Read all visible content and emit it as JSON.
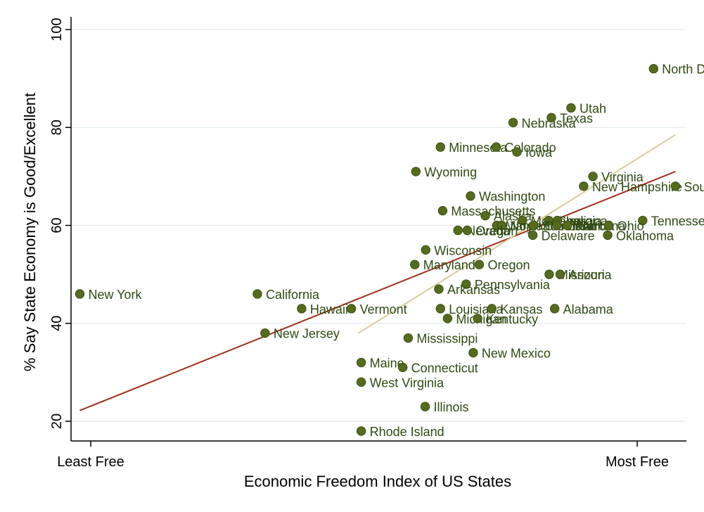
{
  "chart_data": {
    "type": "scatter",
    "title": "",
    "xlabel": "Economic Freedom Index of US States",
    "ylabel": "% Say State Economy is Good/Excellent",
    "ylim": [
      16,
      102
    ],
    "xlim": [
      -0.04,
      1.09
    ],
    "grid": true,
    "legend": "none",
    "x_ticks": [
      {
        "value": 0,
        "label": "Least Free"
      },
      {
        "value": 1,
        "label": "Most Free"
      }
    ],
    "y_ticks": [
      20,
      40,
      60,
      80,
      100
    ],
    "colors": {
      "marker_fill": "#556b1f",
      "marker_stroke": "#3d5012",
      "label": "#2f4a12",
      "fit_line": "#a0301a",
      "fit_line_2": "#d8cc9a",
      "grid": "#e8eef2",
      "axis": "#000000"
    },
    "fit_lines": [
      {
        "name": "linear-fit",
        "x": [
          -0.02,
          1.07
        ],
        "y": [
          22.2,
          71.0
        ],
        "color": "#a0301a"
      },
      {
        "name": "linear-fit-2",
        "x": [
          0.49,
          1.07
        ],
        "y": [
          38.0,
          78.5
        ],
        "color": "#d8cc9a"
      }
    ],
    "points": [
      {
        "label": "New York",
        "x": -0.02,
        "y": 46
      },
      {
        "label": "California",
        "x": 0.305,
        "y": 46
      },
      {
        "label": "Hawaii",
        "x": 0.386,
        "y": 43
      },
      {
        "label": "Vermont",
        "x": 0.477,
        "y": 43
      },
      {
        "label": "New Jersey",
        "x": 0.319,
        "y": 38
      },
      {
        "label": "Maine",
        "x": 0.495,
        "y": 32
      },
      {
        "label": "Connecticut",
        "x": 0.571,
        "y": 31
      },
      {
        "label": "West Virginia",
        "x": 0.495,
        "y": 28
      },
      {
        "label": "Illinois",
        "x": 0.612,
        "y": 23
      },
      {
        "label": "Rhode Island",
        "x": 0.495,
        "y": 18
      },
      {
        "label": "Mississippi",
        "x": 0.581,
        "y": 37
      },
      {
        "label": "New Mexico",
        "x": 0.7,
        "y": 34
      },
      {
        "label": "Wyoming",
        "x": 0.595,
        "y": 71
      },
      {
        "label": "Minnesota",
        "x": 0.64,
        "y": 76
      },
      {
        "label": "Colorado",
        "x": 0.742,
        "y": 76
      },
      {
        "label": "Iowa",
        "x": 0.78,
        "y": 75
      },
      {
        "label": "Nebraska",
        "x": 0.773,
        "y": 81
      },
      {
        "label": "Texas",
        "x": 0.843,
        "y": 82
      },
      {
        "label": "Utah",
        "x": 0.879,
        "y": 84
      },
      {
        "label": "North Dakota",
        "x": 1.03,
        "y": 92
      },
      {
        "label": "Virginia",
        "x": 0.919,
        "y": 70
      },
      {
        "label": "New Hampshire",
        "x": 0.902,
        "y": 68
      },
      {
        "label": "South Dakota",
        "x": 1.07,
        "y": 68
      },
      {
        "label": "Tennessee",
        "x": 1.01,
        "y": 61
      },
      {
        "label": "Oklahoma",
        "x": 0.946,
        "y": 58
      },
      {
        "label": "Washington",
        "x": 0.695,
        "y": 66
      },
      {
        "label": "Massachusetts",
        "x": 0.644,
        "y": 63
      },
      {
        "label": "Alaska",
        "x": 0.722,
        "y": 62
      },
      {
        "label": "Montana",
        "x": 0.79,
        "y": 61
      },
      {
        "label": "Georgia",
        "x": 0.838,
        "y": 61
      },
      {
        "label": "Indiana",
        "x": 0.854,
        "y": 61
      },
      {
        "label": "Maryland",
        "x": 0.743,
        "y": 60
      },
      {
        "label": "North Carolina",
        "x": 0.752,
        "y": 60
      },
      {
        "label": "South Carolina",
        "x": 0.81,
        "y": 60
      },
      {
        "label": "Idaho",
        "x": 0.853,
        "y": 60
      },
      {
        "label": "Florida",
        "x": 0.872,
        "y": 60
      },
      {
        "label": "Ohio",
        "x": 0.948,
        "y": 60
      },
      {
        "label": "Nevada",
        "x": 0.672,
        "y": 59
      },
      {
        "label": "Oregon",
        "x": 0.689,
        "y": 59
      },
      {
        "label": "Delaware",
        "x": 0.809,
        "y": 58
      },
      {
        "label": "Wisconsin",
        "x": 0.613,
        "y": 55
      },
      {
        "label": "Maryland",
        "x": 0.593,
        "y": 52
      },
      {
        "label": "Oregon",
        "x": 0.711,
        "y": 52
      },
      {
        "label": "Missouri",
        "x": 0.839,
        "y": 50
      },
      {
        "label": "Arizona",
        "x": 0.859,
        "y": 50
      },
      {
        "label": "Pennsylvania",
        "x": 0.687,
        "y": 48
      },
      {
        "label": "Arkansas",
        "x": 0.637,
        "y": 47
      },
      {
        "label": "Louisiana",
        "x": 0.64,
        "y": 43
      },
      {
        "label": "Kansas",
        "x": 0.734,
        "y": 43
      },
      {
        "label": "Alabama",
        "x": 0.849,
        "y": 43
      },
      {
        "label": "Michigan",
        "x": 0.653,
        "y": 41
      },
      {
        "label": "Kentucky",
        "x": 0.708,
        "y": 41
      }
    ],
    "label_overrides": {
      "Alaska": "Alaska",
      "North Carolina": "North Carolina",
      "South Carolina": "South Carolina",
      "Nevada": "Nevada",
      "Oregon": "Oregon"
    }
  }
}
